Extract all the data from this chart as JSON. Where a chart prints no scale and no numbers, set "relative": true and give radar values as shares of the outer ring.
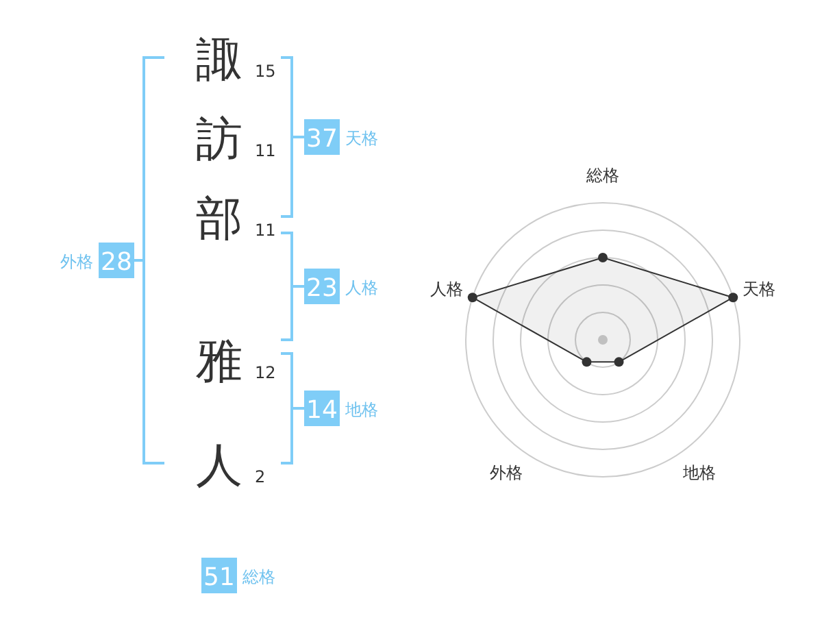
{
  "chart_data": [
    {
      "type": "other",
      "categories": [
        "諏",
        "訪",
        "部",
        "雅",
        "人"
      ],
      "values": [
        15,
        11,
        11,
        12,
        2
      ],
      "data_labels": true,
      "annotations": [
        "37",
        "天格",
        "23",
        "人格",
        "14",
        "地格",
        "28",
        "外格",
        "51",
        "総格"
      ]
    },
    {
      "type": "radar",
      "categories": [
        "総格",
        "天格",
        "地格",
        "外格",
        "人格"
      ],
      "relative": true,
      "marker": "circle",
      "series": [
        {
          "color": "#333333",
          "values": [
            0.6,
            1,
            0.2,
            0.2,
            1
          ]
        }
      ]
    }
  ]
}
